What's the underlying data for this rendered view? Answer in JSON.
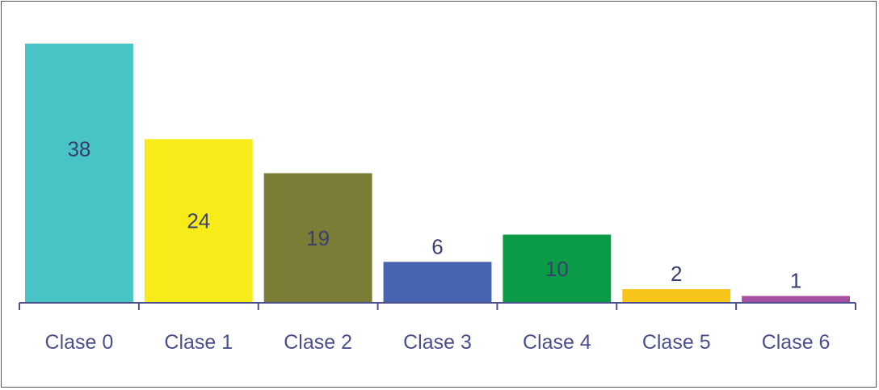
{
  "chart_data": {
    "type": "bar",
    "categories": [
      "Clase 0",
      "Clase 1",
      "Clase 2",
      "Clase 3",
      "Clase 4",
      "Clase 5",
      "Clase 6"
    ],
    "values": [
      38,
      24,
      19,
      6,
      10,
      2,
      1
    ],
    "value_labels": [
      "38",
      "24",
      "19",
      "6",
      "10",
      "2",
      "1"
    ],
    "colors": [
      "#48c4c6",
      "#f7ec19",
      "#7b7c35",
      "#4764b0",
      "#0b9a48",
      "#f7c41a",
      "#a44fa0"
    ],
    "value_label_color": "#3a3f6e",
    "axis_color": "#4b4f8c",
    "tick_label_color": "#4b4f8c",
    "ylim": [
      0,
      38
    ],
    "grid": false,
    "legend": "none",
    "title": "",
    "xlabel": "",
    "ylabel": ""
  }
}
